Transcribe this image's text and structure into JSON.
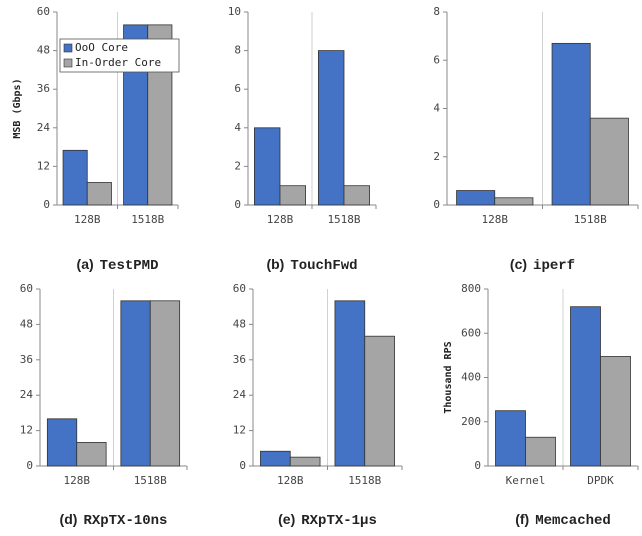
{
  "chart_data": [
    {
      "type": "bar",
      "label": "(a)",
      "title": "TestPMD",
      "y_label": "MSB (Gbps)",
      "categories": [
        "128B",
        "1518B"
      ],
      "series": [
        {
          "name": "OoO Core",
          "color": "#4472c4",
          "values": [
            17,
            56
          ]
        },
        {
          "name": "In-Order Core",
          "color": "#a5a5a5",
          "values": [
            7,
            56
          ]
        }
      ],
      "ylim": [
        0,
        60
      ],
      "yticks": [
        0,
        12,
        24,
        36,
        48,
        60
      ],
      "legend": "upper left"
    },
    {
      "type": "bar",
      "label": "(b)",
      "title": "TouchFwd",
      "categories": [
        "128B",
        "1518B"
      ],
      "series": [
        {
          "color": "#4472c4",
          "values": [
            4,
            8
          ]
        },
        {
          "color": "#a5a5a5",
          "values": [
            1,
            1
          ]
        }
      ],
      "ylim": [
        0,
        10
      ],
      "yticks": [
        0,
        2,
        4,
        6,
        8,
        10
      ]
    },
    {
      "type": "bar",
      "label": "(c)",
      "title": "iperf",
      "categories": [
        "128B",
        "1518B"
      ],
      "series": [
        {
          "color": "#4472c4",
          "values": [
            0.6,
            6.7
          ]
        },
        {
          "color": "#a5a5a5",
          "values": [
            0.3,
            3.6
          ]
        }
      ],
      "ylim": [
        0,
        8
      ],
      "yticks": [
        0,
        2,
        4,
        6,
        8
      ]
    },
    {
      "type": "bar",
      "label": "(d)",
      "title": "RXpTX-10ns",
      "categories": [
        "128B",
        "1518B"
      ],
      "series": [
        {
          "color": "#4472c4",
          "values": [
            16,
            56
          ]
        },
        {
          "color": "#a5a5a5",
          "values": [
            8,
            56
          ]
        }
      ],
      "ylim": [
        0,
        60
      ],
      "yticks": [
        0,
        12,
        24,
        36,
        48,
        60
      ]
    },
    {
      "type": "bar",
      "label": "(e)",
      "title": "RXpTX-1μs",
      "categories": [
        "128B",
        "1518B"
      ],
      "series": [
        {
          "color": "#4472c4",
          "values": [
            5,
            56
          ]
        },
        {
          "color": "#a5a5a5",
          "values": [
            3,
            44
          ]
        }
      ],
      "ylim": [
        0,
        60
      ],
      "yticks": [
        0,
        12,
        24,
        36,
        48,
        60
      ]
    },
    {
      "type": "bar",
      "label": "(f)",
      "title": "Memcached",
      "y_label": "Thousand RPS",
      "categories": [
        "Kernel",
        "DPDK"
      ],
      "series": [
        {
          "color": "#4472c4",
          "values": [
            250,
            720
          ]
        },
        {
          "color": "#a5a5a5",
          "values": [
            130,
            495
          ]
        }
      ],
      "ylim": [
        0,
        800
      ],
      "yticks": [
        0,
        200,
        400,
        600,
        800
      ]
    }
  ]
}
